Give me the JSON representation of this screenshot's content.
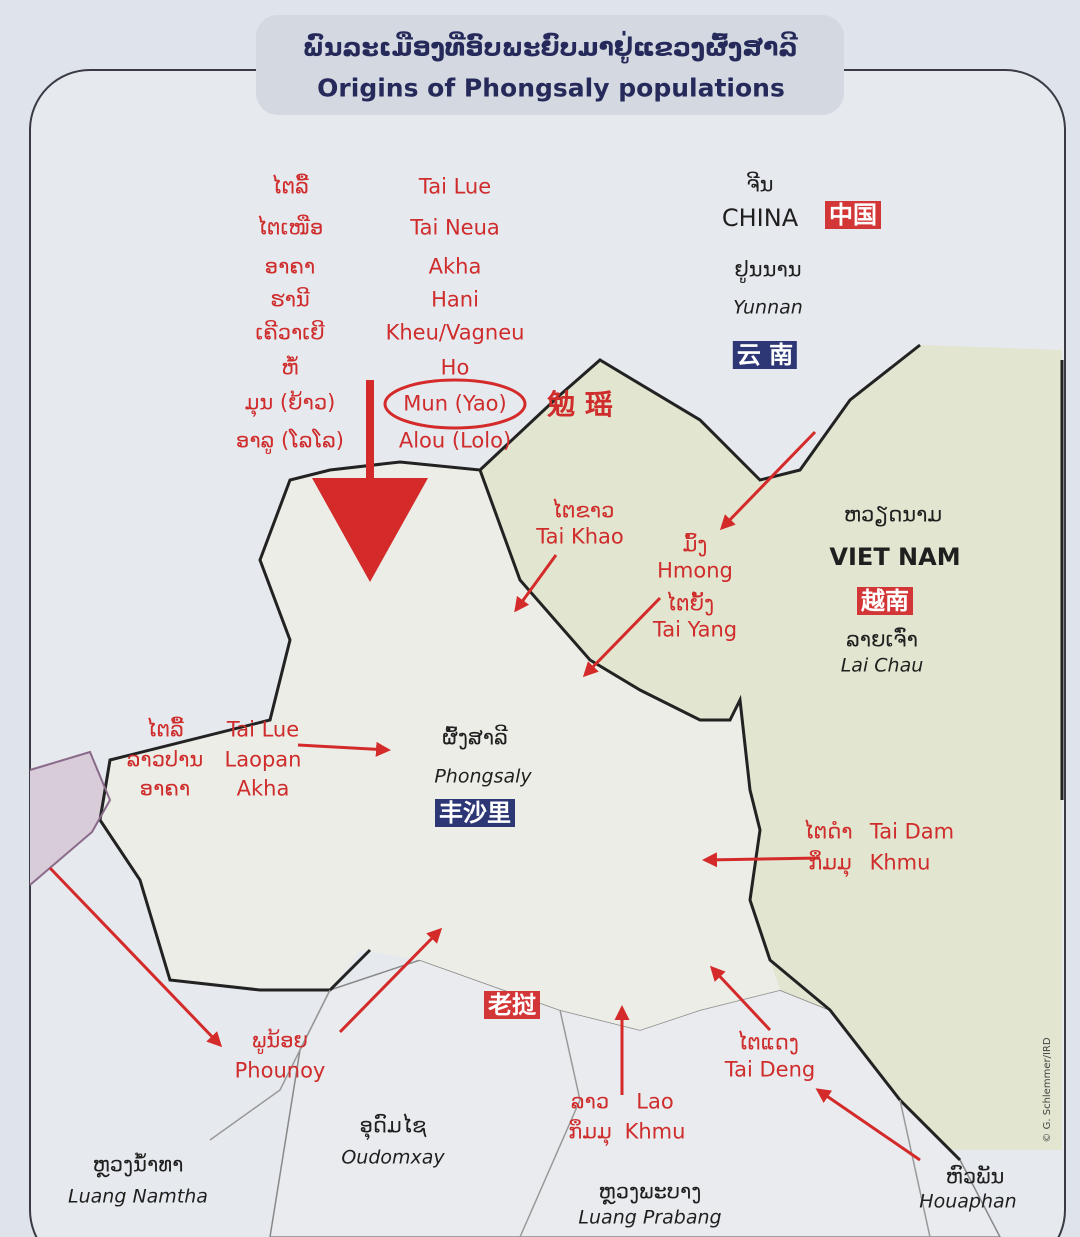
{
  "header": {
    "title_lao": "ພົນລະເມືອງທີ່ອົບພະຍົບມາຢູ່ແຂວງຜົ້ງສາລີ",
    "title_en": "Origins of Phongsaly populations"
  },
  "north_groups": {
    "lao": [
      "ໄຕລື້",
      "ໄຕເໜືອ",
      "ອາຄາ",
      "ຮານີ",
      "ເຄີວາເຍີ",
      "ຫໍ້",
      "ມຸນ (ຍ້າວ)",
      "ອາລູ (ໂລໂລ)"
    ],
    "en": [
      "Tai Lue",
      "Tai Neua",
      "Akha",
      "Hani",
      "Kheu/Vagneu",
      "Ho",
      "Mun (Yao)",
      "Alou (Lolo)"
    ],
    "chinese": "勉 瑶"
  },
  "china": {
    "lao": "ຈີນ",
    "en": "CHINA",
    "chinese": "中国",
    "province_lao": "ຢູນນານ",
    "province_en": "Yunnan",
    "province_chinese": "云 南"
  },
  "vietnam": {
    "lao": "ຫວຽດນາມ",
    "en": "VIET NAM",
    "chinese": "越南",
    "province_lao": "ລາຍເຈົ່າ",
    "province_en": "Lai Chau"
  },
  "tai_khao": {
    "lao": "ໄຕຂາວ",
    "en": "Tai Khao"
  },
  "hmong": {
    "lao": "ມົ້ງ",
    "en": "Hmong"
  },
  "tai_yang": {
    "lao": "ໄຕຍັ້ງ",
    "en": "Tai Yang"
  },
  "phongsaly": {
    "lao": "ຜົ້ງສາລີ",
    "en": "Phongsaly",
    "chinese": "丰沙里"
  },
  "west_groups": {
    "lao": [
      "ໄຕລື້",
      "ລາວປານ",
      "ອາຄາ"
    ],
    "en": [
      "Tai Lue",
      "Laopan",
      "Akha"
    ]
  },
  "east_groups": {
    "lao": [
      "ໄຕດຳ",
      "ກຶມມຸ"
    ],
    "en": [
      "Tai Dam",
      "Khmu"
    ]
  },
  "laos_chinese": "老挝",
  "phounoy": {
    "lao": "ພູນ້ອຍ",
    "en": "Phounoy"
  },
  "oudomxay": {
    "lao": "ອຸດົມໄຊ",
    "en": "Oudomxay"
  },
  "luang_namtha": {
    "lao": "ຫຼວງນ້ຳທາ",
    "en": "Luang Namtha"
  },
  "south_groups": {
    "lao": [
      "ລາວ",
      "ກຶມມຸ"
    ],
    "en": [
      "Lao",
      "Khmu"
    ]
  },
  "luang_prabang": {
    "lao": "ຫຼວງພະບາງ",
    "en": "Luang Prabang"
  },
  "tai_deng": {
    "lao": "ໄຕແດງ",
    "en": "Tai Deng"
  },
  "houaphan": {
    "lao": "ຫົວພັນ",
    "en": "Houaphan"
  },
  "credit": "© G. Schlemmer/IRD"
}
